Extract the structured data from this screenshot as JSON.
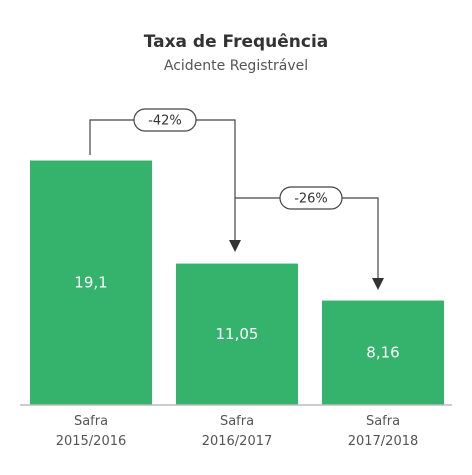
{
  "chart_data": {
    "type": "bar",
    "title": "Taxa de Frequência",
    "subtitle": "Acidente Registrável",
    "categories": [
      "Safra\n2015/2016",
      "Safra\n2016/2017",
      "Safra\n2017/2018"
    ],
    "values": [
      19.1,
      11.05,
      8.16
    ],
    "value_labels": [
      "19,1",
      "11,05",
      "8,16"
    ],
    "color": "#35b36c",
    "annotations": [
      "-42%",
      "-26%"
    ]
  }
}
